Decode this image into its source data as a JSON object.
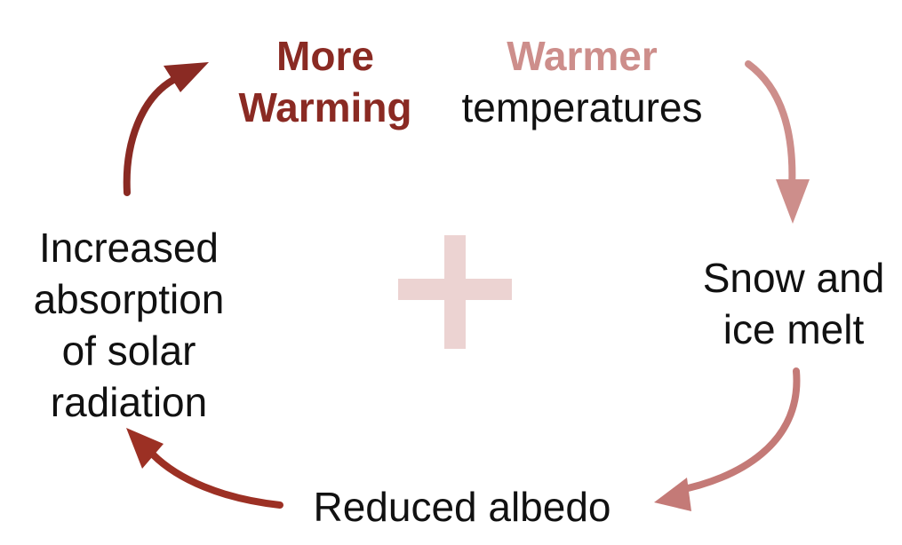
{
  "colors": {
    "dark_red": "#8a2a23",
    "light_red": "#cd8e8b",
    "mid_red": "#c47a77",
    "arrow_left": "#9c3024",
    "plus": "#ecd3d2",
    "text": "#111111"
  },
  "nodes": {
    "more_warming": {
      "line1": "More",
      "line2": "Warming"
    },
    "warmer_temperatures": {
      "emphasis": "Warmer",
      "rest": "temperatures"
    },
    "snow_ice_melt": {
      "line1": "Snow and",
      "line2": "ice melt"
    },
    "reduced_albedo": {
      "text": "Reduced albedo"
    },
    "increased_absorption": {
      "line1": "Increased",
      "line2": "absorption",
      "line3": "of solar",
      "line4": "radiation"
    }
  },
  "center_symbol": "plus-icon"
}
